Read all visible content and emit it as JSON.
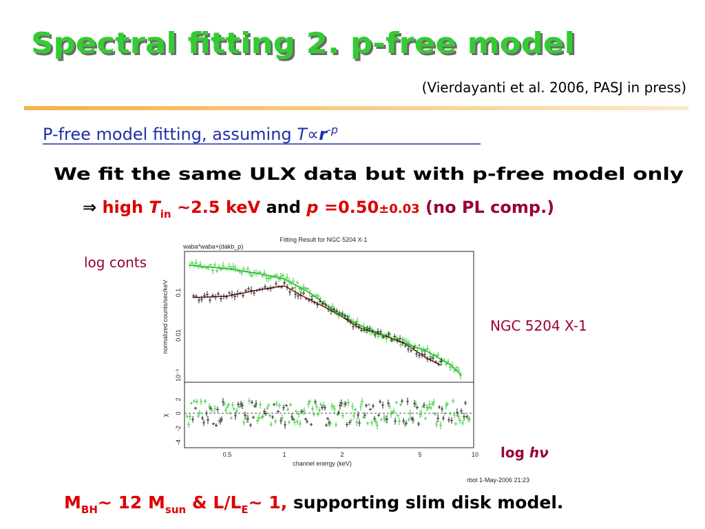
{
  "slide": {
    "title": "Spectral fitting 2. p-free model",
    "citation": "(Vierdayanti et al. 2006, PASJ in press)",
    "subheading": [
      "P-free model fitting, assuming ",
      "T",
      "∝",
      "r",
      "-p"
    ],
    "bullet": "We fit the same ULX data but with p-free model only",
    "result": [
      "⇒",
      "high ",
      "T",
      "in",
      " ~2.5 keV",
      " and ",
      "p",
      " =0.50",
      "±0.03",
      " (no PL comp.)"
    ],
    "label_y": "log conts",
    "label_object": "NGC 5204 X-1",
    "label_x": [
      "log ",
      "hν"
    ],
    "conclusion": [
      "M",
      "BH",
      "~ 12 M",
      "sun",
      " & L/L",
      "E",
      "~ 1,",
      " supporting slim disk model."
    ]
  },
  "figure": {
    "title": "Fitting Result for NGC 5204 X-1",
    "model": "waba*waba+(dakb_p)",
    "y_label": "normalized counts/sec/keV",
    "y_ticks": [
      "0.1",
      "0.01",
      "10⁻³"
    ],
    "resid_label": "χ",
    "resid_ticks": [
      "2",
      "0",
      "-2",
      "-4"
    ],
    "x_ticks": [
      "0.5",
      "1",
      "2",
      "5",
      "10"
    ],
    "x_label": "channel energy (keV)",
    "footer": "rbot 1-May-2006 21:23"
  }
}
